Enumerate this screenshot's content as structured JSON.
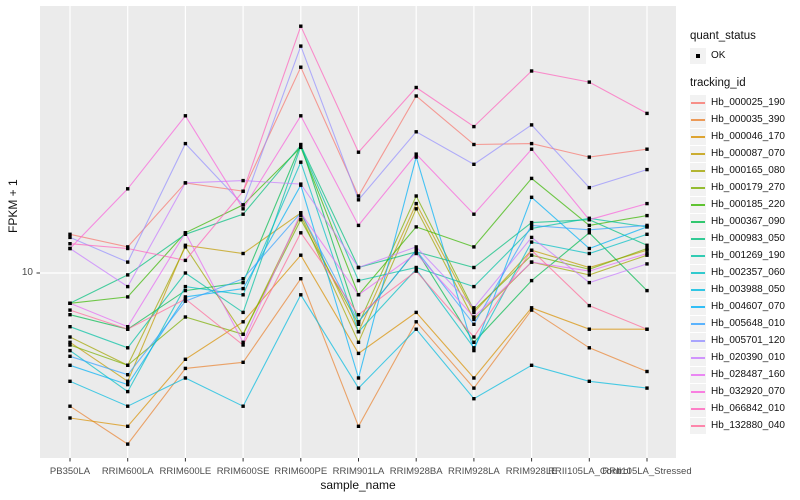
{
  "figure": {
    "y_axis": {
      "title": "FPKM + 1",
      "tick_labels": [
        "10"
      ],
      "tick_values": [
        10
      ]
    },
    "x_axis": {
      "title": "sample_name",
      "categories": [
        "PB350LA",
        "RRIM600LA",
        "RRIM600LE",
        "RRIM600SE",
        "RRIM600PE",
        "RRIM901LA",
        "RRIM928BA",
        "RRIM928LA",
        "RRIM928LE",
        "RRII105LA_Control",
        "RRII105LA_Stressed"
      ]
    },
    "legend": {
      "quant_status": {
        "title": "quant_status",
        "items": [
          {
            "label": "OK",
            "marker": "black-point"
          }
        ]
      },
      "tracking_id": {
        "title": "tracking_id"
      }
    },
    "theme": {
      "panel_background": "#EBEBEB",
      "gridline_color": "#FFFFFF",
      "tick_text_color": "#4D4D4D",
      "point_color": "#000000",
      "legend_key_background": "#F2F2F2"
    }
  },
  "chart_data": {
    "type": "line",
    "title": "",
    "xlabel": "sample_name",
    "ylabel": "FPKM + 1",
    "yscale": "log10",
    "y_ticks_shown": [
      10
    ],
    "grid": "ggplot-default",
    "legend_position": "right",
    "point_marker": "small black square (quant_status = OK) on every point",
    "x": [
      "PB350LA",
      "RRIM600LA",
      "RRIM600LE",
      "RRIM600SE",
      "RRIM600PE",
      "RRIM901LA",
      "RRIM928BA",
      "RRIM928LA",
      "RRIM928LE",
      "RRII105LA_Control",
      "RRII105LA_Stressed"
    ],
    "series": [
      {
        "name": "Hb_000025_190",
        "color": "#F8766D",
        "values": [
          12.3,
          11.5,
          16.2,
          15.5,
          30.1,
          15.1,
          25.8,
          19.9,
          20.0,
          18.6,
          19.4
        ]
      },
      {
        "name": "Hb_000035_390",
        "color": "#EA8331",
        "values": [
          4.9,
          4.0,
          6.0,
          6.2,
          9.7,
          4.4,
          7.7,
          5.4,
          8.2,
          6.7,
          5.9
        ]
      },
      {
        "name": "Hb_000046_170",
        "color": "#D89000",
        "values": [
          4.6,
          4.4,
          6.3,
          7.7,
          11.0,
          6.5,
          8.1,
          5.7,
          8.3,
          7.4,
          7.4
        ]
      },
      {
        "name": "Hb_000087_070",
        "color": "#C09B00",
        "values": [
          6.9,
          5.6,
          11.6,
          11.1,
          13.8,
          7.3,
          14.5,
          8.1,
          11.3,
          10.3,
          11.3
        ]
      },
      {
        "name": "Hb_000165_080",
        "color": "#A3A500",
        "values": [
          7.1,
          6.1,
          11.5,
          7.2,
          13.6,
          6.9,
          14.1,
          7.8,
          10.6,
          9.9,
          11.0
        ]
      },
      {
        "name": "Hb_000179_270",
        "color": "#7CAE00",
        "values": [
          6.8,
          6.1,
          7.9,
          7.2,
          13.3,
          7.6,
          15.1,
          8.2,
          11.0,
          10.2,
          11.4
        ]
      },
      {
        "name": "Hb_000185_220",
        "color": "#39B600",
        "values": [
          8.5,
          8.8,
          12.4,
          14.4,
          19.6,
          8.9,
          12.8,
          11.5,
          16.6,
          12.9,
          13.6
        ]
      },
      {
        "name": "Hb_000367_090",
        "color": "#00BB4E",
        "values": [
          8.0,
          7.4,
          9.1,
          9.5,
          19.9,
          7.7,
          11.3,
          6.9,
          9.6,
          12.4,
          9.1
        ]
      },
      {
        "name": "Hb_000983_050",
        "color": "#00BF7D",
        "values": [
          8.5,
          9.9,
          12.3,
          13.7,
          19.8,
          10.3,
          11.2,
          10.3,
          13.1,
          13.3,
          11.6
        ]
      },
      {
        "name": "Hb_001269_190",
        "color": "#00C1A3",
        "values": [
          7.5,
          6.7,
          10.0,
          8.1,
          19.7,
          9.6,
          10.3,
          9.3,
          12.7,
          13.4,
          12.8
        ]
      },
      {
        "name": "Hb_002357_060",
        "color": "#00BFC4",
        "values": [
          6.6,
          5.3,
          9.3,
          8.9,
          18.1,
          7.3,
          10.2,
          6.7,
          11.8,
          11.1,
          12.3
        ]
      },
      {
        "name": "Hb_003988_050",
        "color": "#00BAE0",
        "values": [
          5.6,
          4.9,
          5.7,
          4.9,
          8.9,
          5.4,
          7.4,
          5.1,
          6.1,
          5.6,
          5.4
        ]
      },
      {
        "name": "Hb_004607_070",
        "color": "#00B0F6",
        "values": [
          6.1,
          5.5,
          8.8,
          9.2,
          16.0,
          5.7,
          18.6,
          6.6,
          15.0,
          11.4,
          12.8
        ]
      },
      {
        "name": "Hb_005648_010",
        "color": "#35A2FF",
        "values": [
          6.4,
          5.8,
          8.6,
          9.7,
          13.8,
          7.7,
          11.3,
          7.6,
          12.9,
          12.6,
          12.9
        ]
      },
      {
        "name": "Hb_005701_120",
        "color": "#9590FF",
        "values": [
          12.1,
          10.6,
          20.0,
          14.4,
          33.7,
          14.8,
          21.3,
          17.9,
          22.1,
          15.8,
          17.4
        ]
      },
      {
        "name": "Hb_020390_010",
        "color": "#C77CFF",
        "values": [
          11.4,
          9.3,
          16.2,
          16.4,
          16.1,
          10.3,
          11.5,
          8.3,
          12.1,
          9.5,
          10.5
        ]
      },
      {
        "name": "Hb_028487_160",
        "color": "#E76BF3",
        "values": [
          8.5,
          7.5,
          12.4,
          6.9,
          13.8,
          8.9,
          11.1,
          7.9,
          10.6,
          10.1,
          11.1
        ]
      },
      {
        "name": "Hb_032920_070",
        "color": "#FA62DB",
        "values": [
          11.4,
          15.7,
          23.2,
          14.1,
          23.2,
          12.9,
          18.9,
          13.7,
          19.4,
          13.3,
          14.5
        ]
      },
      {
        "name": "Hb_066842_010",
        "color": "#FF62BC",
        "values": [
          11.7,
          11.4,
          10.7,
          15.5,
          37.5,
          19.1,
          27.0,
          21.9,
          29.5,
          27.8,
          23.5
        ]
      },
      {
        "name": "Hb_132880_040",
        "color": "#FF6A98",
        "values": [
          8.2,
          7.4,
          8.7,
          6.8,
          12.4,
          8.0,
          10.1,
          7.1,
          11.3,
          8.4,
          7.4
        ]
      }
    ]
  }
}
